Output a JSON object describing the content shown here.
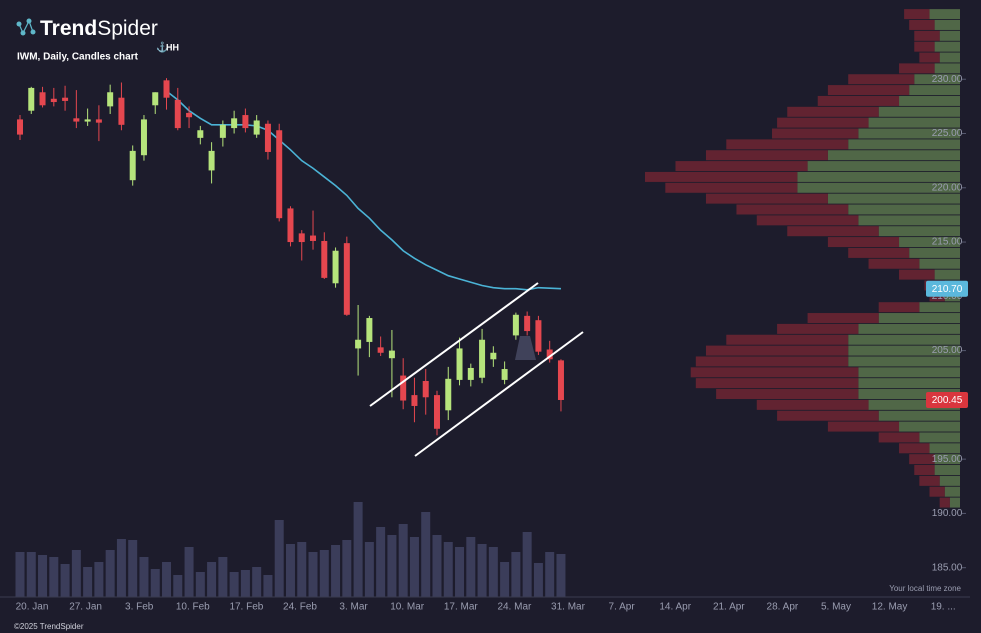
{
  "chart_data": {
    "type": "candlestick",
    "brand": {
      "bold": "Trend",
      "light": "Spider"
    },
    "title": "IWM, Daily, Candles chart",
    "study_label": "HH",
    "footer": "©2025 TrendSpider",
    "timezone_note": "Your local time zone",
    "ylim": [
      182.3,
      237.3
    ],
    "yticks": [
      {
        "value": 185,
        "label": "185.00"
      },
      {
        "value": 190,
        "label": "190.00"
      },
      {
        "value": 195,
        "label": "195.00"
      },
      {
        "value": 200,
        "label": "200.00"
      },
      {
        "value": 205,
        "label": "205.00"
      },
      {
        "value": 210,
        "label": "210.00"
      },
      {
        "value": 215,
        "label": "215.00"
      },
      {
        "value": 220,
        "label": "220.00"
      },
      {
        "value": 225,
        "label": "225.00"
      },
      {
        "value": 230,
        "label": "230.00"
      }
    ],
    "x_axis_labels": [
      "20. Jan",
      "27. Jan",
      "3. Feb",
      "10. Feb",
      "17. Feb",
      "24. Feb",
      "3. Mar",
      "10. Mar",
      "17. Mar",
      "24. Mar",
      "31. Mar",
      "7. Apr",
      "14. Apr",
      "21. Apr",
      "28. Apr",
      "5. May",
      "12. May",
      "19. ..."
    ],
    "up_color": "#b6e47c",
    "down_color": "#e5474f",
    "open": [
      226.3,
      227.1,
      228.8,
      228.2,
      228.3,
      226.4,
      226.1,
      226.3,
      227.5,
      228.3,
      220.7,
      223.0,
      227.6,
      229.9,
      228.1,
      226.9,
      224.6,
      221.6,
      224.6,
      225.5,
      226.7,
      224.9,
      225.9,
      225.3,
      218.1,
      215.8,
      215.6,
      215.1,
      211.2,
      214.9,
      205.2,
      205.8,
      205.3,
      204.3,
      202.7,
      200.9,
      202.2,
      200.9,
      199.5,
      202.3,
      202.3,
      202.5,
      204.2,
      202.3,
      206.4,
      208.2,
      207.8,
      205.1,
      204.1
    ],
    "high": [
      226.7,
      229.3,
      229.3,
      229.2,
      229.4,
      229.0,
      227.3,
      227.6,
      229.5,
      229.7,
      223.9,
      226.7,
      228.8,
      230.1,
      229.2,
      227.5,
      225.7,
      224.2,
      226.2,
      227.1,
      227.3,
      226.7,
      226.2,
      225.9,
      218.3,
      216.1,
      217.9,
      215.9,
      214.5,
      215.5,
      209.2,
      208.2,
      206.3,
      206.9,
      204.3,
      202.5,
      203.3,
      201.3,
      203.5,
      206.2,
      203.8,
      207.0,
      205.4,
      204.0,
      208.5,
      208.6,
      208.2,
      205.9,
      204.2
    ],
    "low": [
      224.4,
      226.8,
      227.4,
      227.5,
      227.1,
      225.5,
      225.7,
      224.3,
      226.8,
      225.3,
      220.2,
      222.5,
      226.8,
      227.2,
      225.3,
      225.5,
      224.0,
      220.4,
      223.8,
      225.0,
      225.1,
      224.6,
      222.6,
      216.9,
      214.6,
      213.3,
      214.3,
      211.6,
      210.8,
      208.2,
      202.7,
      204.4,
      204.5,
      200.7,
      199.6,
      198.4,
      199.1,
      197.2,
      198.6,
      201.8,
      201.7,
      202.0,
      203.5,
      201.9,
      206.0,
      206.4,
      204.6,
      203.9,
      199.4
    ],
    "close": [
      224.9,
      229.2,
      227.6,
      227.9,
      228.0,
      226.1,
      226.3,
      226.0,
      228.8,
      225.8,
      223.4,
      226.3,
      228.8,
      228.3,
      225.5,
      226.5,
      225.3,
      223.4,
      225.8,
      226.4,
      225.5,
      226.2,
      223.3,
      217.2,
      215.0,
      215.0,
      215.1,
      211.7,
      214.2,
      208.3,
      206.0,
      208.0,
      204.8,
      205.0,
      200.4,
      199.9,
      200.7,
      197.8,
      202.4,
      205.2,
      203.4,
      206.0,
      204.8,
      203.3,
      208.3,
      206.8,
      204.9,
      204.2,
      200.45
    ],
    "volume": {
      "color": "#3b3d5a",
      "values": [
        45,
        45,
        42,
        40,
        33,
        47,
        30,
        35,
        47,
        58,
        57,
        40,
        28,
        35,
        22,
        50,
        25,
        35,
        40,
        25,
        27,
        30,
        22,
        77,
        53,
        55,
        45,
        47,
        52,
        57,
        95,
        55,
        70,
        62,
        73,
        60,
        85,
        62,
        55,
        50,
        60,
        53,
        50,
        35,
        45,
        65,
        34,
        45,
        43
      ]
    },
    "ma": {
      "color": "#4bb3d6",
      "values": [
        null,
        null,
        null,
        null,
        null,
        null,
        null,
        null,
        null,
        null,
        null,
        null,
        null,
        228.9,
        228.1,
        227.1,
        226.4,
        225.8,
        225.8,
        225.8,
        225.8,
        225.7,
        225.3,
        224.4,
        223.5,
        222.5,
        221.8,
        221.0,
        220.2,
        219.3,
        218.1,
        217.2,
        216.1,
        215.2,
        214.2,
        213.5,
        212.9,
        212.4,
        211.9,
        211.6,
        211.3,
        211.0,
        210.8,
        210.7,
        210.7,
        210.6,
        210.8,
        210.75,
        210.7
      ]
    },
    "price_tags": [
      {
        "value": 210.7,
        "label": "210.70",
        "color": "#5bb8dc"
      },
      {
        "value": 200.45,
        "label": "200.45",
        "color": "#d9363e"
      }
    ],
    "profile": {
      "up_color": "#56704a",
      "down_color": "#6a2532",
      "levels": [
        236,
        235,
        234,
        233,
        232,
        231,
        230,
        229,
        228,
        227,
        226,
        225,
        224,
        223,
        222,
        221,
        220,
        219,
        218,
        217,
        216,
        215,
        214,
        213,
        212,
        211,
        210,
        209,
        208,
        207,
        206,
        205,
        204,
        203,
        202,
        201,
        200,
        199,
        198,
        197,
        196,
        195,
        194,
        193,
        192,
        191
      ],
      "up": [
        30,
        25,
        20,
        25,
        20,
        25,
        45,
        50,
        60,
        80,
        90,
        100,
        110,
        130,
        150,
        160,
        160,
        130,
        110,
        100,
        80,
        60,
        50,
        40,
        25,
        15,
        15,
        40,
        80,
        100,
        110,
        110,
        110,
        100,
        100,
        100,
        90,
        80,
        60,
        40,
        30,
        25,
        25,
        20,
        15,
        10
      ],
      "down": [
        25,
        25,
        25,
        20,
        20,
        35,
        65,
        80,
        80,
        90,
        90,
        85,
        120,
        120,
        130,
        150,
        130,
        120,
        110,
        100,
        90,
        70,
        60,
        50,
        35,
        20,
        15,
        40,
        70,
        80,
        120,
        140,
        150,
        165,
        160,
        140,
        110,
        100,
        70,
        40,
        30,
        25,
        20,
        20,
        15,
        10
      ]
    }
  }
}
